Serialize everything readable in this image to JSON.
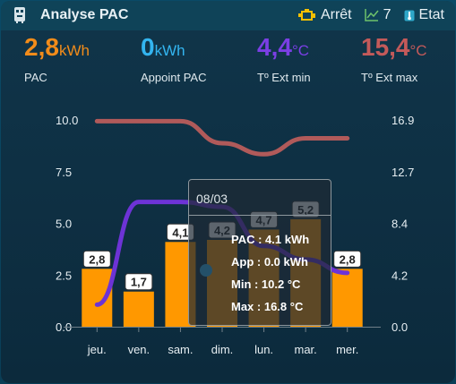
{
  "header": {
    "title": "Analyse PAC",
    "status_label": "Arrêt",
    "count_label": "7",
    "etat_label": "Etat",
    "icons": [
      "water-heater-icon",
      "engine-icon",
      "chart-line-icon",
      "thermometer-icon"
    ]
  },
  "stats": [
    {
      "value": "2,8",
      "unit": "kWh",
      "label": "PAC",
      "color": "#f28c1a"
    },
    {
      "value": "0",
      "unit": "kWh",
      "label": "Appoint PAC",
      "color": "#33b5f0"
    },
    {
      "value": "4,4",
      "unit": "°C",
      "label": "Tº Ext min",
      "color": "#7b3fe4"
    },
    {
      "value": "15,4",
      "unit": "°C",
      "label": "Tº Ext max",
      "color": "#c45a5a"
    }
  ],
  "tooltip": {
    "date": "08/03",
    "rows": [
      "PAC : 4.1 kWh",
      "App : 0.0 kWh",
      "Min : 10.2 °C",
      "Max : 16.8 °C"
    ]
  },
  "chart_data": {
    "type": "bar",
    "categories": [
      "jeu.",
      "ven.",
      "sam.",
      "dim.",
      "lun.",
      "mar.",
      "mer."
    ],
    "y_left_ticks": [
      "10.0",
      "7.5",
      "5.0",
      "2.5",
      "0.0"
    ],
    "y_right_ticks": [
      "16.9",
      "12.7",
      "8.4",
      "4.2",
      "0.0"
    ],
    "ylim_left": [
      0,
      10
    ],
    "ylim_right": [
      0,
      16.9
    ],
    "series": [
      {
        "name": "PAC",
        "type": "bar",
        "axis": "left",
        "color": "#ff9800",
        "values": [
          2.8,
          1.7,
          4.1,
          4.2,
          4.7,
          5.2,
          2.8
        ],
        "labels": [
          "2,8",
          "1,7",
          "4,1",
          "4,2",
          "4,7",
          "5,2",
          "2,8"
        ]
      },
      {
        "name": "Appoint PAC",
        "type": "bar",
        "axis": "left",
        "color": "#33b5f0",
        "values": [
          0,
          0,
          0,
          0,
          0,
          0,
          0
        ]
      },
      {
        "name": "Tº Ext min",
        "type": "line",
        "axis": "right",
        "color": "#6d33d6",
        "values": [
          1.8,
          10.2,
          10.2,
          9.8,
          6.6,
          5.5,
          4.4
        ]
      },
      {
        "name": "Tº Ext max",
        "type": "line",
        "axis": "right",
        "color": "#b05a5a",
        "values": [
          16.8,
          16.8,
          16.8,
          15.0,
          14.1,
          15.4,
          15.4
        ]
      }
    ]
  }
}
